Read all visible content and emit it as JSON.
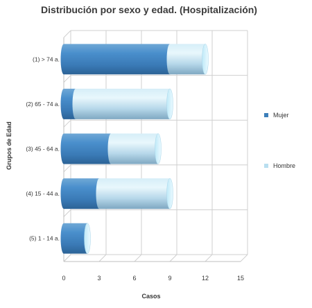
{
  "chart_data": {
    "type": "bar",
    "orientation": "horizontal",
    "stacked": true,
    "style": "3d-cylinder",
    "title": "Distribución por sexo y edad. (Hospitalización)",
    "xlabel": "Casos",
    "ylabel": "Grupos de Edad",
    "categories": [
      "(1) > 74 a.",
      "(2) 65 - 74 a.",
      "(3) 45 - 64 a.",
      "(4) 15 - 44 a.",
      "(5) 1 - 14 a."
    ],
    "series": [
      {
        "name": "Mujer",
        "values": [
          9,
          1,
          4,
          3,
          2
        ]
      },
      {
        "name": "Hombre",
        "values": [
          3,
          8,
          4,
          6,
          0
        ]
      }
    ],
    "xlim": [
      0,
      15
    ],
    "xticks": [
      0,
      3,
      6,
      9,
      12,
      15
    ],
    "grid": true,
    "legend_position": "right",
    "colors": {
      "Mujer": "#3d7fba",
      "Hombre": "#b9dff0"
    }
  }
}
